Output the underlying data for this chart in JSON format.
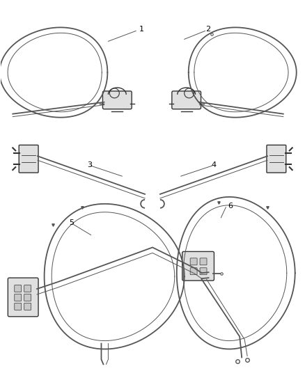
{
  "bg_color": "#ffffff",
  "line_color": "#555555",
  "line_color_dark": "#333333",
  "lw_main": 1.3,
  "lw_thin": 0.7,
  "figsize": [
    4.38,
    5.33
  ],
  "dpi": 100
}
